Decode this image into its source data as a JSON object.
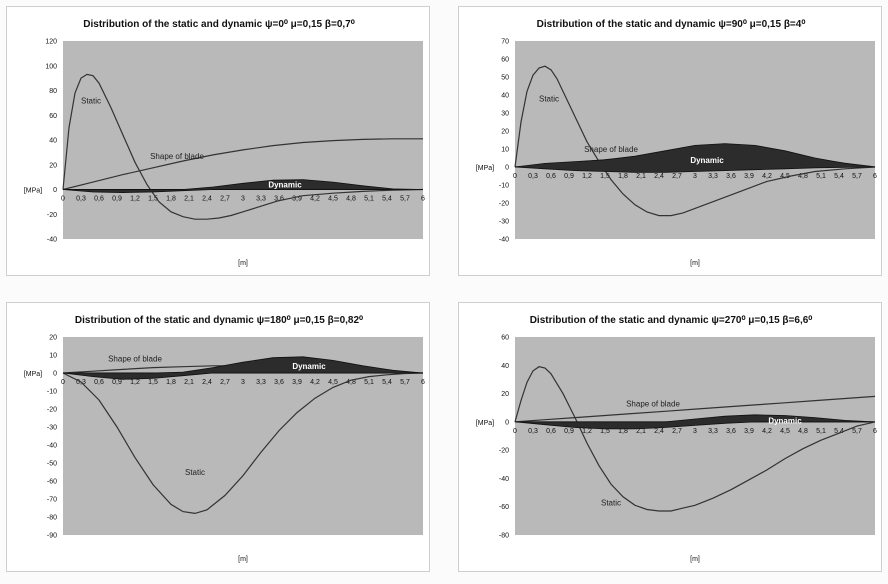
{
  "chart_data": [
    {
      "type": "line",
      "title": "Distribution of the static and dynamic ψ=0⁰ μ=0,15 β=0,7⁰",
      "ylabel": "[MPa]",
      "xlabel": "[m]",
      "ylim": [
        -40,
        120
      ],
      "yticks": [
        120,
        100,
        80,
        60,
        40,
        20,
        0,
        -20,
        -40
      ],
      "x_tick_labels": [
        "0",
        "0,3",
        "0,6",
        "0,9",
        "1,2",
        "1,5",
        "1,8",
        "2,1",
        "2,4",
        "2,7",
        "3",
        "3,3",
        "3,6",
        "3,9",
        "4,2",
        "4,5",
        "4,8",
        "5,1",
        "5,4",
        "5,7",
        "6"
      ],
      "xlim": [
        0,
        6
      ],
      "series": [
        {
          "name": "Static",
          "kind": "line",
          "x": [
            0,
            0.1,
            0.2,
            0.3,
            0.4,
            0.5,
            0.6,
            0.8,
            1.0,
            1.2,
            1.4,
            1.6,
            1.8,
            2.0,
            2.2,
            2.4,
            2.6,
            2.8,
            3.0,
            3.2,
            3.4,
            3.6,
            3.8,
            4.0,
            4.5,
            5.0,
            5.5,
            6.0
          ],
          "y": [
            0,
            50,
            78,
            90,
            93,
            92,
            86,
            66,
            44,
            22,
            4,
            -10,
            -18,
            -22,
            -24,
            -24,
            -23,
            -21,
            -18,
            -15,
            -12,
            -9,
            -7,
            -5,
            -3,
            -1.5,
            -0.5,
            0
          ]
        },
        {
          "name": "Shape of blade",
          "kind": "line",
          "x": [
            0,
            0.5,
            1.0,
            1.5,
            2.0,
            2.5,
            3.0,
            3.5,
            4.0,
            4.5,
            5.0,
            5.5,
            6.0
          ],
          "y": [
            0,
            6,
            12,
            17.5,
            23,
            28,
            32,
            35.5,
            38,
            39.5,
            40.5,
            41,
            41
          ]
        },
        {
          "name": "Dynamic",
          "kind": "area",
          "x": [
            0,
            0.5,
            1.0,
            1.5,
            2.0,
            2.5,
            3.0,
            3.5,
            4.0,
            4.5,
            5.0,
            5.5,
            6.0
          ],
          "upper": [
            0,
            0,
            0,
            0,
            0,
            2,
            5,
            7.5,
            8,
            6,
            3,
            0.5,
            0
          ],
          "lower": [
            0,
            -2,
            -2.5,
            -2,
            -1,
            0,
            0,
            0,
            0,
            0,
            0,
            0,
            0
          ]
        }
      ]
    },
    {
      "type": "line",
      "title": "Distribution of the static and dynamic ψ=90⁰ μ=0,15 β=4⁰",
      "ylabel": "[MPa]",
      "xlabel": "[m]",
      "ylim": [
        -40,
        70
      ],
      "yticks": [
        70,
        60,
        50,
        40,
        30,
        20,
        10,
        0,
        -10,
        -20,
        -30,
        -40
      ],
      "x_tick_labels": [
        "0",
        "0,3",
        "0,6",
        "0,9",
        "1,2",
        "1,5",
        "1,8",
        "2,1",
        "2,4",
        "2,7",
        "3",
        "3,3",
        "3,6",
        "3,9",
        "4,2",
        "4,5",
        "4,8",
        "5,1",
        "5,4",
        "5,7",
        "6"
      ],
      "xlim": [
        0,
        6
      ],
      "series": [
        {
          "name": "Static",
          "kind": "line",
          "x": [
            0,
            0.1,
            0.2,
            0.3,
            0.4,
            0.5,
            0.6,
            0.7,
            0.8,
            1.0,
            1.2,
            1.4,
            1.6,
            1.8,
            2.0,
            2.2,
            2.4,
            2.6,
            2.8,
            3.0,
            3.4,
            3.8,
            4.2,
            4.6,
            5.0,
            5.5,
            6.0
          ],
          "y": [
            0,
            25,
            42,
            51,
            55,
            56,
            54,
            49,
            42,
            28,
            14,
            3,
            -7,
            -15,
            -21,
            -25,
            -27,
            -27,
            -25.5,
            -23,
            -18,
            -13,
            -8,
            -5,
            -2.5,
            -1,
            0
          ]
        },
        {
          "name": "Shape of blade",
          "kind": "line",
          "x": [
            0,
            0.5,
            1.0,
            1.5,
            2.0,
            2.5,
            3.0,
            3.5,
            4.0,
            4.5,
            5.0,
            5.5,
            6.0
          ],
          "y": [
            0,
            1,
            2.5,
            4,
            5.5,
            7,
            8,
            8.5,
            8,
            6.5,
            4.5,
            2,
            0
          ]
        },
        {
          "name": "Dynamic",
          "kind": "area",
          "x": [
            0,
            0.5,
            1.0,
            1.5,
            2.0,
            2.5,
            3.0,
            3.5,
            4.0,
            4.5,
            5.0,
            5.5,
            6.0
          ],
          "upper": [
            0,
            2,
            3,
            4,
            6,
            9,
            12,
            13,
            12,
            9,
            5,
            2,
            0
          ],
          "lower": [
            0,
            -1,
            -2,
            -2.5,
            -3,
            -3,
            -2.5,
            -2,
            -1.5,
            -1,
            -0.5,
            -0.2,
            0
          ]
        }
      ]
    },
    {
      "type": "line",
      "title": "Distribution of the static and dynamic ψ=180⁰ μ=0,15 β=0,82⁰",
      "ylabel": "[MPa]",
      "xlabel": "[m]",
      "ylim": [
        -90,
        20
      ],
      "yticks": [
        20,
        10,
        0,
        -10,
        -20,
        -30,
        -40,
        -50,
        -60,
        -70,
        -80,
        -90
      ],
      "x_tick_labels": [
        "0",
        "0,3",
        "0,6",
        "0,9",
        "1,2",
        "1,5",
        "1,8",
        "2,1",
        "2,4",
        "2,7",
        "3",
        "3,3",
        "3,6",
        "3,9",
        "4,2",
        "4,5",
        "4,8",
        "5,1",
        "5,4",
        "5,7",
        "6"
      ],
      "xlim": [
        0,
        6
      ],
      "series": [
        {
          "name": "Static",
          "kind": "line",
          "x": [
            0,
            0.3,
            0.6,
            0.9,
            1.2,
            1.5,
            1.8,
            2.0,
            2.2,
            2.4,
            2.7,
            3.0,
            3.3,
            3.6,
            3.9,
            4.2,
            4.5,
            4.8,
            5.1,
            5.4,
            5.7,
            6.0
          ],
          "y": [
            0,
            -5,
            -15,
            -30,
            -47,
            -62,
            -73,
            -77,
            -78,
            -76,
            -68,
            -57,
            -44,
            -32,
            -22,
            -14,
            -8,
            -4,
            -2,
            -1,
            -0.3,
            0
          ]
        },
        {
          "name": "Shape of blade",
          "kind": "line",
          "x": [
            0,
            0.5,
            1.0,
            1.5,
            2.0,
            2.5,
            3.0,
            3.5,
            4.0,
            4.5,
            5.0,
            5.5,
            6.0
          ],
          "y": [
            0,
            1,
            2,
            3,
            3.5,
            4,
            4,
            3.5,
            3,
            2.5,
            1.5,
            0.5,
            0
          ]
        },
        {
          "name": "Dynamic",
          "kind": "area",
          "x": [
            0,
            0.5,
            1.0,
            1.5,
            2.0,
            2.5,
            3.0,
            3.5,
            4.0,
            4.5,
            5.0,
            5.5,
            6.0
          ],
          "upper": [
            0,
            0,
            0,
            0,
            0.5,
            3,
            6,
            8.5,
            9,
            7,
            4,
            1.5,
            0
          ],
          "lower": [
            0,
            -2,
            -3.5,
            -3,
            -1.5,
            0,
            0,
            0,
            0,
            0,
            0,
            0,
            0
          ]
        }
      ]
    },
    {
      "type": "line",
      "title": "Distribution of the static and dynamic ψ=270⁰ μ=0,15 β=6,6⁰",
      "ylabel": "[MPa]",
      "xlabel": "[m]",
      "ylim": [
        -80,
        60
      ],
      "yticks": [
        60,
        40,
        20,
        0,
        -20,
        -40,
        -60,
        -80
      ],
      "x_tick_labels": [
        "0",
        "0,3",
        "0,6",
        "0,9",
        "1,2",
        "1,5",
        "1,8",
        "2,1",
        "2,4",
        "2,7",
        "3",
        "3,3",
        "3,6",
        "3,9",
        "4,2",
        "4,5",
        "4,8",
        "5,1",
        "5,4",
        "5,7",
        "6"
      ],
      "xlim": [
        0,
        6
      ],
      "series": [
        {
          "name": "Static",
          "kind": "line",
          "x": [
            0,
            0.1,
            0.2,
            0.3,
            0.4,
            0.5,
            0.6,
            0.8,
            1.0,
            1.2,
            1.4,
            1.6,
            1.8,
            2.0,
            2.2,
            2.4,
            2.6,
            2.8,
            3.0,
            3.3,
            3.6,
            3.9,
            4.2,
            4.5,
            4.8,
            5.1,
            5.4,
            5.7,
            6.0
          ],
          "y": [
            0,
            15,
            28,
            36,
            39,
            38,
            34,
            20,
            3,
            -15,
            -31,
            -44,
            -53,
            -59,
            -62,
            -63,
            -63,
            -61,
            -59,
            -54,
            -48,
            -41,
            -34,
            -26,
            -19,
            -13,
            -8,
            -3,
            0
          ]
        },
        {
          "name": "Shape of blade",
          "kind": "line",
          "x": [
            0,
            0.5,
            1.0,
            1.5,
            2.0,
            2.5,
            3.0,
            3.5,
            4.0,
            4.5,
            5.0,
            5.5,
            6.0
          ],
          "y": [
            0,
            1.5,
            3,
            4.5,
            6,
            7.5,
            9,
            10.5,
            12,
            13.5,
            15,
            16.5,
            18
          ]
        },
        {
          "name": "Dynamic",
          "kind": "area",
          "x": [
            0,
            0.5,
            1.0,
            1.5,
            2.0,
            2.5,
            3.0,
            3.5,
            4.0,
            4.5,
            5.0,
            5.5,
            6.0
          ],
          "upper": [
            0,
            0,
            0,
            0,
            0,
            0,
            2,
            4,
            5,
            4.5,
            3,
            1,
            0
          ],
          "lower": [
            0,
            -2,
            -4,
            -5,
            -5,
            -4,
            -2.5,
            -1,
            0,
            0,
            0,
            0,
            0
          ]
        }
      ]
    }
  ]
}
